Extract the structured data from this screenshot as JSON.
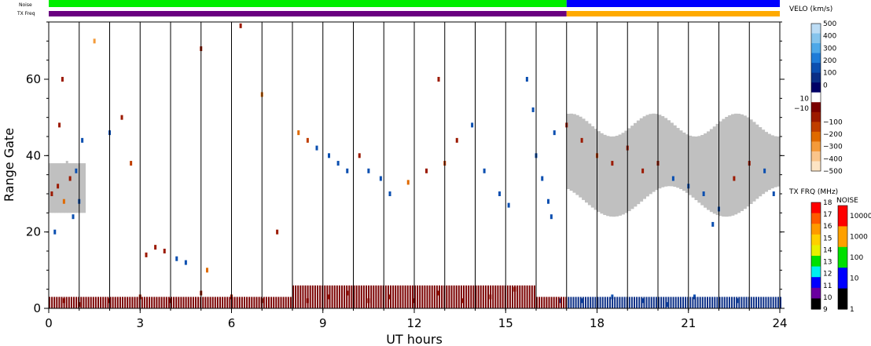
{
  "chart_data": {
    "type": "heatmap",
    "title": "",
    "xlabel": "UT hours",
    "ylabel": "Range Gate",
    "xlim": [
      0,
      24
    ],
    "ylim": [
      0,
      75
    ],
    "x_ticks": [
      "0",
      "3",
      "6",
      "9",
      "12",
      "15",
      "18",
      "21",
      "24"
    ],
    "y_ticks": [
      "0",
      "20",
      "40",
      "60"
    ],
    "grid": "vertical lines every hour",
    "velocity_colorbar": {
      "title": "VELO (km/s)",
      "ticks": [
        "500",
        "400",
        "300",
        "200",
        "100",
        "0",
        "10",
        "−10",
        "−100",
        "−200",
        "−300",
        "−400",
        "−500"
      ],
      "colors_top_to_bottom": [
        "#bcdcf4",
        "#86c4ec",
        "#4ea8e8",
        "#1e7cd8",
        "#0b4fb0",
        "#0a2e86",
        "#000066",
        "#ffffff",
        "#7a0000",
        "#9c1a00",
        "#c03e00",
        "#e06a00",
        "#f49a3a",
        "#fac48a",
        "#fde4c4"
      ]
    },
    "txfreq_colorbar": {
      "title": "TX FRQ (MHz)",
      "ticks": [
        "18",
        "17",
        "16",
        "15",
        "14",
        "13",
        "12",
        "11",
        "10",
        "9"
      ],
      "colors_top_to_bottom": [
        "#ff0000",
        "#ff5a00",
        "#ff9a00",
        "#ffd000",
        "#e8f000",
        "#00e000",
        "#00f0f0",
        "#0000ff",
        "#6a00a0",
        "#000000"
      ]
    },
    "noise_colorbar": {
      "title": "NOISE",
      "ticks": [
        "10000",
        "1000",
        "100",
        "10",
        "1"
      ],
      "colors_top_to_bottom": [
        "#ff0000",
        "#ffa000",
        "#00e000",
        "#0000ff",
        "#000000"
      ]
    },
    "top_bars": {
      "noise_label": "Noise",
      "txfreq_label": "TX Freq",
      "noise": [
        {
          "from": 0,
          "to": 17,
          "color": "#00ee00"
        },
        {
          "from": 17,
          "to": 24,
          "color": "#0000ff"
        }
      ],
      "txfreq": [
        {
          "from": 0,
          "to": 17,
          "color": "#6a0080"
        },
        {
          "from": 17,
          "to": 24,
          "color": "#ffaa00"
        }
      ]
    },
    "ground_scatter_color": "#c0c0c0",
    "series": [
      {
        "cells": [
          [
            0.1,
            30,
            -100
          ],
          [
            0.3,
            32,
            -100
          ],
          [
            0.5,
            28,
            -300
          ],
          [
            0.7,
            34,
            -100
          ],
          [
            0.9,
            36,
            100
          ],
          [
            1.1,
            44,
            100
          ],
          [
            0.8,
            24,
            100
          ],
          [
            1.0,
            28,
            100
          ],
          [
            0.2,
            20,
            100
          ],
          [
            0.6,
            38,
            0
          ],
          [
            0.45,
            60,
            -100
          ],
          [
            0.35,
            48,
            -100
          ],
          [
            2.0,
            46,
            100
          ],
          [
            2.4,
            50,
            -100
          ],
          [
            2.7,
            38,
            -200
          ],
          [
            3.2,
            14,
            -100
          ],
          [
            3.5,
            16,
            -100
          ],
          [
            3.8,
            15,
            -100
          ],
          [
            4.2,
            13,
            100
          ],
          [
            4.5,
            12,
            100
          ],
          [
            1.5,
            70,
            -400
          ],
          [
            5.0,
            68,
            -100
          ],
          [
            6.3,
            74,
            -100
          ],
          [
            7.0,
            56,
            -300
          ],
          [
            8.2,
            46,
            -300
          ],
          [
            8.5,
            44,
            -200
          ],
          [
            8.8,
            42,
            100
          ],
          [
            9.2,
            40,
            100
          ],
          [
            9.5,
            38,
            100
          ],
          [
            9.8,
            36,
            100
          ],
          [
            10.2,
            40,
            -100
          ],
          [
            10.5,
            36,
            100
          ],
          [
            10.9,
            34,
            100
          ],
          [
            11.2,
            30,
            100
          ],
          [
            11.8,
            33,
            -300
          ],
          [
            12.4,
            36,
            -100
          ],
          [
            13.0,
            38,
            -200
          ],
          [
            13.4,
            44,
            -100
          ],
          [
            13.9,
            48,
            100
          ],
          [
            14.3,
            36,
            100
          ],
          [
            14.8,
            30,
            100
          ],
          [
            15.1,
            27,
            100
          ],
          [
            15.7,
            60,
            100
          ],
          [
            15.9,
            52,
            100
          ],
          [
            16.0,
            40,
            100
          ],
          [
            16.2,
            34,
            100
          ],
          [
            16.4,
            28,
            100
          ],
          [
            16.5,
            24,
            100
          ],
          [
            16.6,
            46,
            100
          ],
          [
            17.0,
            48,
            -100
          ],
          [
            17.5,
            44,
            -100
          ],
          [
            18.0,
            40,
            -200
          ],
          [
            18.5,
            38,
            -100
          ],
          [
            19.0,
            42,
            -100
          ],
          [
            19.5,
            36,
            -100
          ],
          [
            20.0,
            38,
            -100
          ],
          [
            20.5,
            34,
            100
          ],
          [
            21.0,
            32,
            100
          ],
          [
            21.5,
            30,
            100
          ],
          [
            22.0,
            26,
            100
          ],
          [
            22.5,
            34,
            -100
          ],
          [
            23.0,
            38,
            -100
          ],
          [
            23.5,
            36,
            100
          ],
          [
            23.8,
            30,
            100
          ],
          [
            21.8,
            22,
            100
          ],
          [
            5.2,
            10,
            -300
          ],
          [
            7.5,
            20,
            -100
          ],
          [
            12.8,
            60,
            -100
          ],
          [
            16.8,
            2,
            100
          ],
          [
            17.5,
            2,
            100
          ],
          [
            18.5,
            3,
            100
          ],
          [
            19.5,
            2,
            100
          ],
          [
            20.3,
            1,
            100
          ],
          [
            21.2,
            3,
            100
          ],
          [
            22.6,
            2,
            100
          ],
          [
            8.5,
            2,
            -100
          ],
          [
            9.2,
            3,
            -100
          ],
          [
            9.8,
            4,
            -100
          ],
          [
            10.5,
            2,
            -100
          ],
          [
            11.2,
            3,
            -100
          ],
          [
            12.0,
            2,
            -100
          ],
          [
            12.8,
            4,
            -100
          ],
          [
            13.6,
            2,
            -100
          ],
          [
            14.5,
            3,
            -100
          ],
          [
            15.3,
            5,
            -100
          ],
          [
            2.0,
            2,
            -100
          ],
          [
            3.0,
            3,
            -100
          ],
          [
            4.0,
            2,
            -100
          ],
          [
            5.0,
            4,
            -100
          ],
          [
            6.0,
            3,
            -100
          ],
          [
            7.0,
            2,
            -100
          ],
          [
            1.0,
            1,
            -100
          ],
          [
            0.5,
            2,
            -100
          ]
        ]
      }
    ]
  }
}
